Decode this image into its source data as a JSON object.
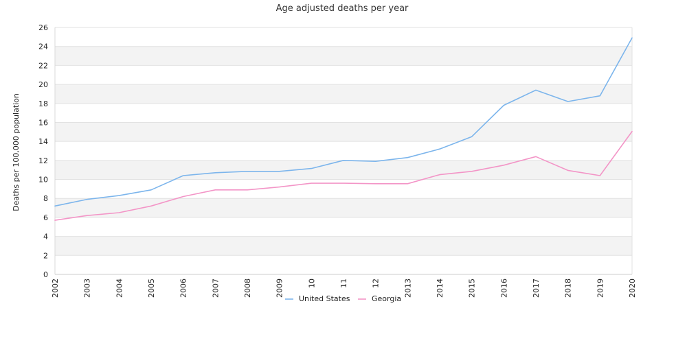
{
  "chart_data": {
    "type": "line",
    "title": "Age adjusted deaths per year",
    "xlabel": "",
    "ylabel": "Deaths per 100,000 population",
    "ylim": [
      0,
      26
    ],
    "yticks": [
      0,
      2,
      4,
      6,
      8,
      10,
      12,
      14,
      16,
      18,
      20,
      22,
      24,
      26
    ],
    "grid": "horizontal bands",
    "legend": "bottom",
    "categories": [
      "2002",
      "2003",
      "2004",
      "2005",
      "2006",
      "2007",
      "2008",
      "2009",
      "2010",
      "2011",
      "2012",
      "2013",
      "2014",
      "2015",
      "2016",
      "2017",
      "2018",
      "2019",
      "2020"
    ],
    "tick_labels": [
      "2002",
      "2003",
      "2004",
      "2005",
      "2006",
      "2007",
      "2008",
      "2009",
      "10",
      "11",
      "12",
      "2013",
      "2014",
      "2015",
      "2016",
      "2017",
      "2018",
      "2019",
      "2020"
    ],
    "series": [
      {
        "name": "United States",
        "color": "#7cb5ec",
        "values": [
          7.2,
          7.9,
          8.3,
          8.9,
          10.4,
          10.7,
          10.85,
          10.85,
          11.15,
          12.0,
          11.9,
          12.3,
          13.2,
          14.5,
          17.8,
          19.4,
          18.2,
          18.8,
          24.9
        ]
      },
      {
        "name": "Georgia",
        "color": "#f395c7",
        "values": [
          5.7,
          6.2,
          6.5,
          7.2,
          8.2,
          8.9,
          8.9,
          9.2,
          9.6,
          9.6,
          9.55,
          9.55,
          10.5,
          10.85,
          11.5,
          12.4,
          10.95,
          10.4,
          15.05
        ]
      }
    ]
  }
}
